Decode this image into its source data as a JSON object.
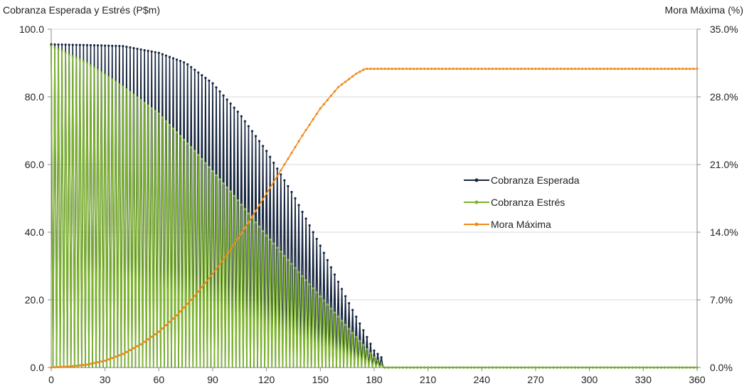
{
  "chart_data": {
    "type": "line",
    "left_axis_title": "Cobranza Esperada y Estrés (P$m)",
    "right_axis_title": "Mora Máxima (%)",
    "x_ticks": [
      "0",
      "30",
      "60",
      "90",
      "120",
      "150",
      "180",
      "210",
      "240",
      "270",
      "300",
      "330",
      "360"
    ],
    "y_left_ticks": [
      "0.0",
      "20.0",
      "40.0",
      "60.0",
      "80.0",
      "100.0"
    ],
    "y_right_ticks": [
      "0.0%",
      "7.0%",
      "14.0%",
      "21.0%",
      "28.0%",
      "35.0%"
    ],
    "xlim": [
      0,
      360
    ],
    "ylim_left": [
      0,
      100
    ],
    "ylim_right": [
      0,
      35
    ],
    "grid": true,
    "legend_position": "center-right",
    "colors": {
      "esperada": "#17263f",
      "estres": "#7db32c",
      "mora": "#f08a1c",
      "grid": "#d9d9d9"
    },
    "series": [
      {
        "name": "Cobranza Esperada",
        "axis": "left",
        "pattern": "alternating peaks and zeros, day step 1",
        "peak_envelope": {
          "x": [
            0,
            20,
            40,
            60,
            75,
            90,
            105,
            120,
            135,
            150,
            165,
            180,
            184,
            185,
            360
          ],
          "y": [
            95.5,
            95.3,
            95.0,
            93.0,
            90.0,
            84.0,
            75.0,
            64.0,
            51.0,
            36.0,
            20.0,
            5.0,
            3.0,
            0.0,
            0.0
          ]
        }
      },
      {
        "name": "Cobranza Estrés",
        "axis": "left",
        "pattern": "alternating peaks and zeros, day step 1",
        "peak_envelope": {
          "x": [
            0,
            20,
            40,
            60,
            80,
            100,
            120,
            140,
            160,
            170,
            180,
            184,
            185,
            360
          ],
          "y": [
            95.0,
            90.0,
            83.0,
            75.0,
            64.0,
            52.0,
            39.0,
            27.0,
            15.0,
            9.0,
            3.0,
            1.0,
            0.0,
            0.0
          ]
        }
      },
      {
        "name": "Mora Máxima",
        "axis": "right",
        "x": [
          0,
          10,
          20,
          30,
          40,
          50,
          60,
          70,
          80,
          90,
          100,
          110,
          120,
          130,
          140,
          150,
          160,
          170,
          175,
          180,
          360
        ],
        "y": [
          0.0,
          0.1,
          0.3,
          0.7,
          1.4,
          2.4,
          3.7,
          5.4,
          7.4,
          9.7,
          12.2,
          15.0,
          18.0,
          21.0,
          24.0,
          26.8,
          29.0,
          30.4,
          30.9,
          30.9,
          30.9
        ]
      }
    ]
  }
}
